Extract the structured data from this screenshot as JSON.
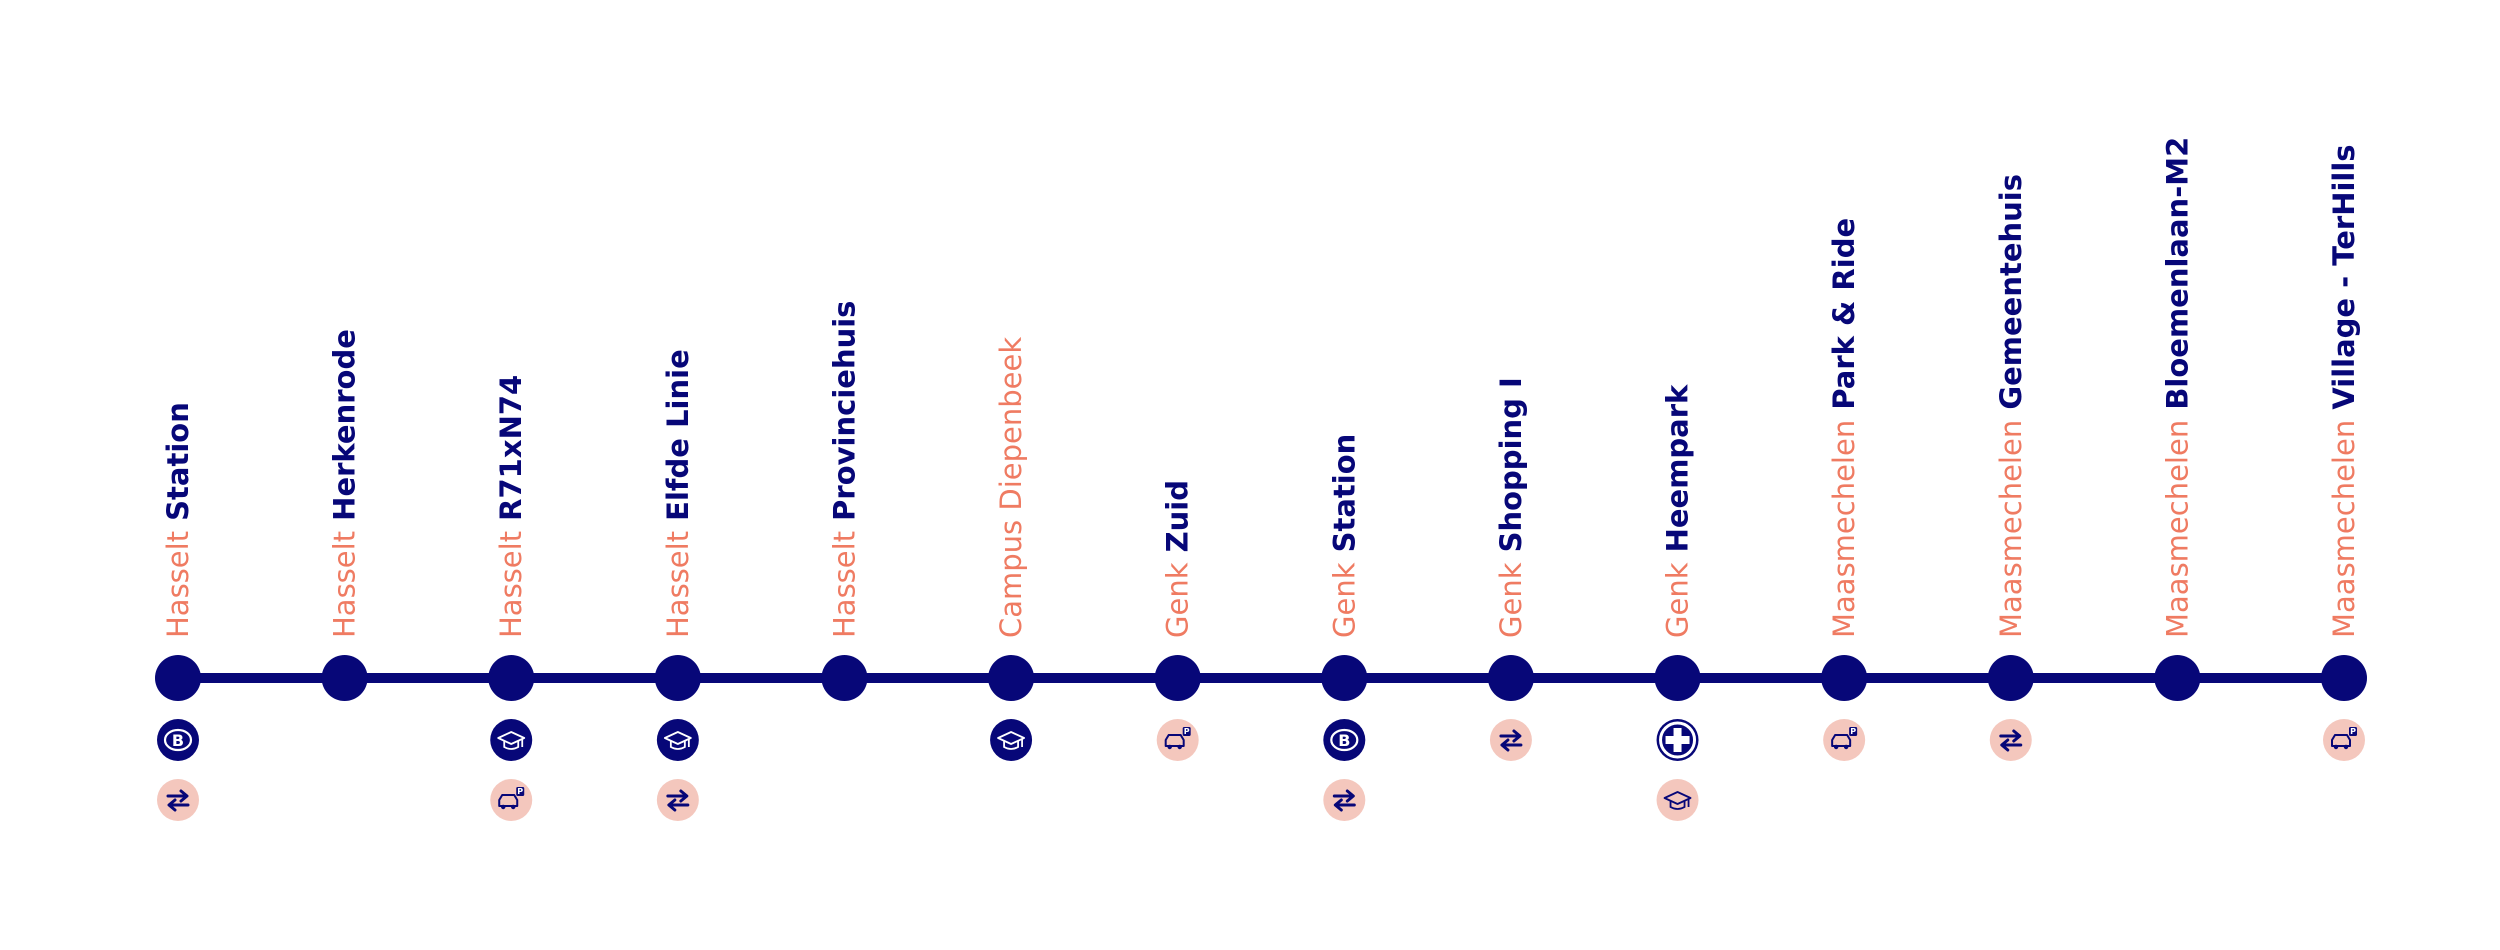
{
  "colors": {
    "line": "#070778",
    "city_text": "#ef7b62",
    "name_text": "#070778",
    "icon_dark_bg": "#070778",
    "icon_light_bg": "#f4c7bd"
  },
  "stops": [
    {
      "city": "Hasselt",
      "name": "Station",
      "icons": [
        {
          "type": "train-icon",
          "style": "dark"
        },
        {
          "type": "bus-transfer-icon",
          "style": "light"
        }
      ]
    },
    {
      "city": "Hasselt",
      "name": "Herkenrode",
      "icons": []
    },
    {
      "city": "Hasselt",
      "name": "R71xN74",
      "icons": [
        {
          "type": "graduation-cap-icon",
          "style": "dark"
        },
        {
          "type": "park-and-ride-icon",
          "style": "light"
        }
      ]
    },
    {
      "city": "Hasselt",
      "name": "Elfde Linie",
      "icons": [
        {
          "type": "graduation-cap-icon",
          "style": "dark"
        },
        {
          "type": "bus-transfer-icon",
          "style": "light"
        }
      ]
    },
    {
      "city": "Hasselt",
      "name": "Provinciehuis",
      "icons": []
    },
    {
      "city": "Campus Diepenbeek",
      "name": "",
      "icons": [
        {
          "type": "graduation-cap-icon",
          "style": "dark"
        }
      ]
    },
    {
      "city": "Genk",
      "name": "Zuid",
      "icons": [
        {
          "type": "park-and-ride-icon",
          "style": "light"
        }
      ]
    },
    {
      "city": "Genk",
      "name": "Station",
      "icons": [
        {
          "type": "train-icon",
          "style": "dark"
        },
        {
          "type": "bus-transfer-icon",
          "style": "light"
        }
      ]
    },
    {
      "city": "Genk",
      "name": "Shopping I",
      "icons": [
        {
          "type": "bus-transfer-icon",
          "style": "light"
        }
      ]
    },
    {
      "city": "Genk",
      "name": "Heempark",
      "icons": [
        {
          "type": "hospital-cross-icon",
          "style": "dark"
        },
        {
          "type": "graduation-cap-icon",
          "style": "light"
        }
      ]
    },
    {
      "city": "Maasmechelen",
      "name": "Park & Ride",
      "icons": [
        {
          "type": "park-and-ride-icon",
          "style": "light"
        }
      ]
    },
    {
      "city": "Maasmechelen",
      "name": "Gemeentehuis",
      "icons": [
        {
          "type": "bus-transfer-icon",
          "style": "light"
        }
      ]
    },
    {
      "city": "Maasmechelen",
      "name": "Bloemenlaan-M2",
      "icons": []
    },
    {
      "city": "Maasmechelen",
      "name": "Village - TerHills",
      "icons": [
        {
          "type": "park-and-ride-icon",
          "style": "light"
        }
      ]
    }
  ]
}
